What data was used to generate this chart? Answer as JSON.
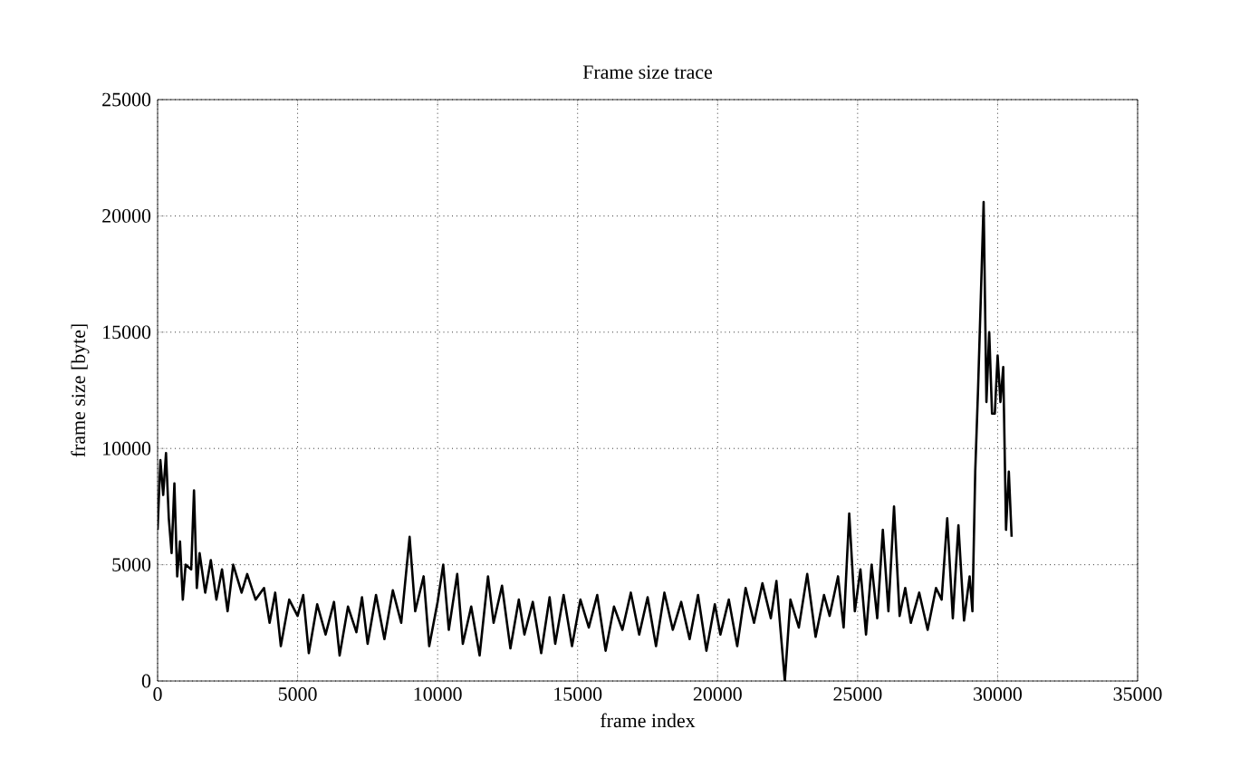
{
  "chart_data": {
    "type": "line",
    "title": "Frame size trace",
    "xlabel": "frame index",
    "ylabel": "frame size [byte]",
    "xlim": [
      0,
      35000
    ],
    "xticks": [
      0,
      5000,
      10000,
      15000,
      20000,
      25000,
      30000,
      35000
    ],
    "ylim": [
      0,
      25000
    ],
    "yticks": [
      0,
      5000,
      10000,
      15000,
      20000,
      25000
    ],
    "grid": true,
    "marker": "none",
    "line_style": "solid",
    "x": [
      0,
      100,
      200,
      300,
      400,
      500,
      600,
      700,
      800,
      900,
      1000,
      1200,
      1300,
      1400,
      1500,
      1700,
      1900,
      2100,
      2300,
      2500,
      2700,
      3000,
      3200,
      3500,
      3800,
      4000,
      4200,
      4400,
      4700,
      5000,
      5200,
      5400,
      5700,
      6000,
      6300,
      6500,
      6800,
      7100,
      7300,
      7500,
      7800,
      8100,
      8400,
      8700,
      9000,
      9200,
      9500,
      9700,
      10000,
      10200,
      10400,
      10700,
      10900,
      11200,
      11500,
      11800,
      12000,
      12300,
      12600,
      12900,
      13100,
      13400,
      13700,
      14000,
      14200,
      14500,
      14800,
      15100,
      15400,
      15700,
      16000,
      16300,
      16600,
      16900,
      17200,
      17500,
      17800,
      18100,
      18400,
      18700,
      19000,
      19300,
      19600,
      19900,
      20100,
      20400,
      20700,
      21000,
      21300,
      21600,
      21900,
      22100,
      22400,
      22600,
      22900,
      23200,
      23500,
      23800,
      24000,
      24300,
      24500,
      24700,
      24900,
      25100,
      25300,
      25500,
      25700,
      25900,
      26100,
      26300,
      26500,
      26700,
      26900,
      27200,
      27500,
      27800,
      28000,
      28200,
      28400,
      28600,
      28800,
      29000,
      29100,
      29200,
      29300,
      29400,
      29500,
      29600,
      29700,
      29800,
      29900,
      30000,
      30100,
      30200,
      30300,
      30400,
      30500
    ],
    "series": [
      {
        "color": "#000000",
        "values": [
          6500,
          9500,
          8000,
          9800,
          7000,
          5500,
          8500,
          4500,
          6000,
          3500,
          5000,
          4800,
          8200,
          4000,
          5500,
          3800,
          5200,
          3500,
          4800,
          3000,
          5000,
          3800,
          4600,
          3500,
          4000,
          2500,
          3800,
          1500,
          3500,
          2800,
          3700,
          1200,
          3300,
          2000,
          3400,
          1100,
          3200,
          2100,
          3600,
          1600,
          3700,
          1800,
          3900,
          2500,
          6200,
          3000,
          4500,
          1500,
          3400,
          5000,
          2200,
          4600,
          1600,
          3200,
          1100,
          4500,
          2500,
          4100,
          1400,
          3500,
          2000,
          3400,
          1200,
          3600,
          1600,
          3700,
          1500,
          3500,
          2300,
          3700,
          1300,
          3200,
          2200,
          3800,
          2000,
          3600,
          1500,
          3800,
          2200,
          3400,
          1800,
          3700,
          1300,
          3300,
          2000,
          3500,
          1500,
          4000,
          2500,
          4200,
          2700,
          4300,
          0,
          3500,
          2300,
          4600,
          1900,
          3700,
          2800,
          4500,
          2300,
          7200,
          3000,
          4800,
          2000,
          5000,
          2700,
          6500,
          3000,
          7500,
          2800,
          4000,
          2500,
          3800,
          2200,
          4000,
          3500,
          7000,
          2700,
          6700,
          2600,
          4500,
          3000,
          9000,
          12500,
          16500,
          20600,
          12000,
          15000,
          11500,
          11500,
          14000,
          12000,
          13500,
          6500,
          9000,
          6200
        ]
      }
    ]
  }
}
